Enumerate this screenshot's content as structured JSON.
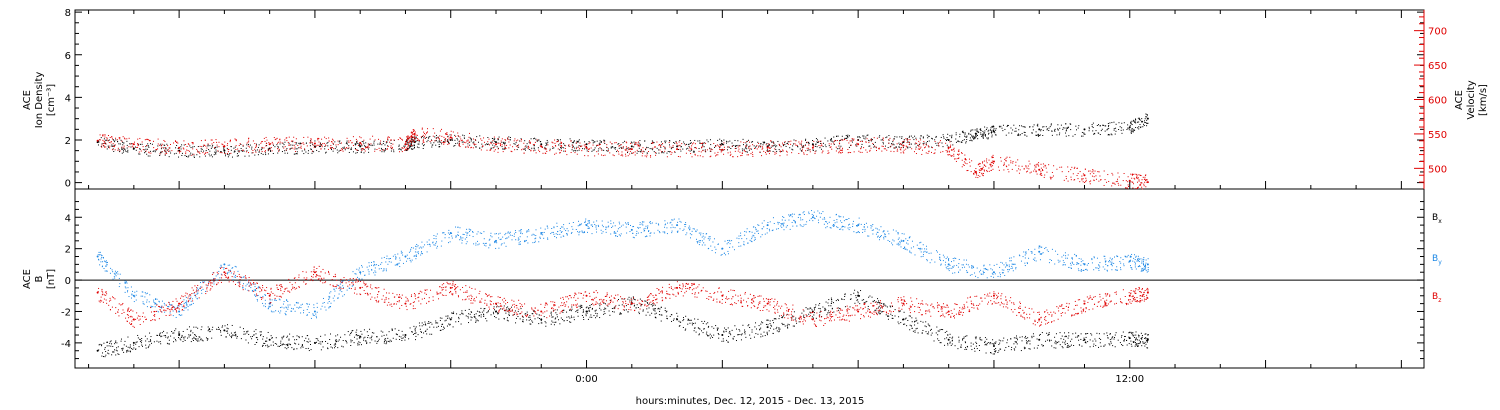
{
  "chart_data": [
    {
      "type": "scatter",
      "panel": "top",
      "ylabel_left": [
        "ACE",
        "Ion Density",
        "[cm⁻³]"
      ],
      "ylabel_right": [
        "ACE",
        "Velocity",
        "[km/s]"
      ],
      "left_axis": {
        "ylim": [
          -0.3,
          8.1
        ],
        "ticks": [
          0,
          2,
          4,
          6,
          8
        ]
      },
      "right_axis": {
        "ylim": [
          470,
          730
        ],
        "ticks": [
          500,
          550,
          600,
          650,
          700
        ]
      },
      "series": [
        {
          "name": "Ion Density",
          "axis": "left",
          "color": "#000000",
          "x_hours": [
            -10.8,
            -10,
            -9,
            -8,
            -7,
            -6,
            -5,
            -4,
            -3.8,
            -3,
            -2,
            -1,
            0,
            1,
            2,
            3,
            4,
            5,
            6,
            7,
            8,
            8.6,
            9,
            10,
            11,
            12,
            12.4
          ],
          "y": [
            1.9,
            1.6,
            1.5,
            1.5,
            1.6,
            1.7,
            1.7,
            1.8,
            1.9,
            2.0,
            1.9,
            1.8,
            1.8,
            1.7,
            1.7,
            1.8,
            1.7,
            1.8,
            2.0,
            1.9,
            2.0,
            2.3,
            2.4,
            2.5,
            2.5,
            2.6,
            3.0
          ]
        },
        {
          "name": "Velocity",
          "axis": "right",
          "color": "#e00000",
          "x_hours": [
            -10.8,
            -10,
            -9,
            -8,
            -7,
            -6,
            -5,
            -4,
            -3.8,
            -3,
            -2,
            -1,
            0,
            1,
            2,
            3,
            4,
            5,
            6,
            7,
            8,
            8.6,
            9,
            10,
            11,
            12,
            12.4
          ],
          "y": [
            540,
            535,
            530,
            532,
            535,
            536,
            537,
            535,
            550,
            545,
            535,
            532,
            530,
            528,
            528,
            527,
            530,
            530,
            535,
            533,
            530,
            495,
            510,
            498,
            490,
            482,
            480
          ]
        }
      ]
    },
    {
      "type": "scatter",
      "panel": "bottom",
      "ylabel": [
        "ACE",
        "B",
        "[nT]"
      ],
      "ylim": [
        -5.6,
        5.8
      ],
      "ticks": [
        -4,
        -2,
        0,
        2,
        4
      ],
      "zero_line": true,
      "legend": [
        "B",
        "B",
        "B"
      ],
      "legend_subscripts": [
        "x",
        "y",
        "z"
      ],
      "series": [
        {
          "name": "Bx",
          "color": "#000000",
          "x_hours": [
            -10.8,
            -10,
            -9,
            -8,
            -7,
            -6,
            -5,
            -4,
            -3,
            -2,
            -1,
            0,
            1,
            2,
            3,
            4,
            5,
            6,
            7,
            8,
            9,
            10,
            11,
            12,
            12.4
          ],
          "y": [
            -4.5,
            -4.0,
            -3.5,
            -3.2,
            -3.8,
            -4.0,
            -3.6,
            -3.5,
            -2.5,
            -2.0,
            -2.5,
            -2.0,
            -1.5,
            -2.5,
            -3.5,
            -3.0,
            -2.0,
            -1.0,
            -2.5,
            -3.8,
            -4.2,
            -3.8,
            -3.8,
            -3.7,
            -3.8
          ]
        },
        {
          "name": "By",
          "color": "#1e88e5",
          "x_hours": [
            -10.8,
            -10,
            -9,
            -8,
            -7,
            -6,
            -5,
            -4,
            -3,
            -2,
            -1,
            0,
            1,
            2,
            3,
            4,
            5,
            6,
            7,
            8,
            9,
            10,
            11,
            12,
            12.4
          ],
          "y": [
            1.5,
            -1.0,
            -2.0,
            1.0,
            -1.5,
            -2.0,
            0.5,
            1.5,
            3.0,
            2.5,
            3.0,
            3.5,
            3.2,
            3.5,
            2.0,
            3.5,
            4.0,
            3.5,
            2.5,
            1.0,
            0.5,
            1.8,
            1.0,
            1.2,
            1.0
          ]
        },
        {
          "name": "Bz",
          "color": "#e00000",
          "x_hours": [
            -10.8,
            -10,
            -9,
            -8,
            -7,
            -6,
            -5,
            -4,
            -3,
            -2,
            -1,
            0,
            1,
            2,
            3,
            4,
            5,
            6,
            7,
            8,
            9,
            10,
            11,
            12,
            12.4
          ],
          "y": [
            -0.8,
            -2.5,
            -1.5,
            0.5,
            -1.0,
            0.5,
            -0.5,
            -1.5,
            -0.5,
            -1.5,
            -2.0,
            -1.0,
            -1.5,
            -0.5,
            -1.0,
            -1.5,
            -2.5,
            -2.0,
            -1.5,
            -2.0,
            -1.0,
            -2.5,
            -1.5,
            -1.0,
            -0.8
          ]
        }
      ]
    }
  ],
  "x_axis": {
    "xlim_hours": [
      -11.3,
      18.5
    ],
    "tick_labels": [
      {
        "hour": 0,
        "label": "0:00"
      },
      {
        "hour": 12,
        "label": "12:00"
      }
    ],
    "major_tick_hours": [
      -9,
      -6,
      -3,
      0,
      3,
      6,
      9,
      12,
      15,
      18
    ],
    "title": "hours:minutes, Dec. 12, 2015 - Dec. 13, 2015"
  },
  "colors": {
    "frame": "#000000",
    "red": "#e00000",
    "blue": "#1e88e5"
  }
}
